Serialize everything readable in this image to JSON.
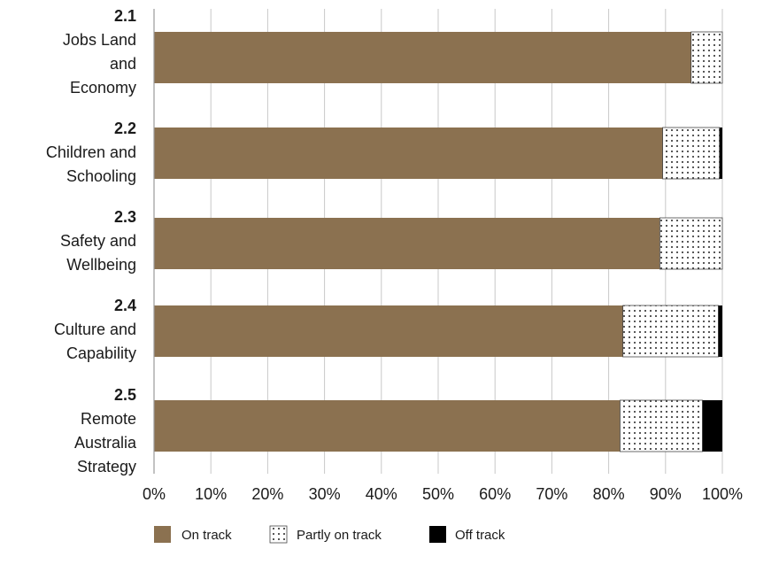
{
  "chart_data": {
    "type": "bar",
    "orientation": "horizontal",
    "stacked": true,
    "categories": [
      {
        "code": "2.1",
        "lines": [
          "Jobs Land",
          "and",
          "Economy"
        ]
      },
      {
        "code": "2.2",
        "lines": [
          "Children and",
          "Schooling"
        ]
      },
      {
        "code": "2.3",
        "lines": [
          "Safety and",
          "Wellbeing"
        ]
      },
      {
        "code": "2.4",
        "lines": [
          "Culture and",
          "Capability"
        ]
      },
      {
        "code": "2.5",
        "lines": [
          "Remote",
          "Australia",
          "Strategy"
        ]
      }
    ],
    "series": [
      {
        "name": "On track",
        "color": "#8b7150",
        "pattern": "solid",
        "values": [
          94.5,
          89.5,
          89.0,
          82.5,
          82.0
        ]
      },
      {
        "name": "Partly on track",
        "color": "#ffffff",
        "pattern": "dots",
        "values": [
          5.5,
          10.0,
          11.0,
          16.8,
          14.5
        ]
      },
      {
        "name": "Off track",
        "color": "#000000",
        "pattern": "solid",
        "values": [
          0.0,
          0.5,
          0.0,
          0.7,
          3.5
        ]
      }
    ],
    "xlim": [
      0,
      100
    ],
    "x_ticks": [
      0,
      10,
      20,
      30,
      40,
      50,
      60,
      70,
      80,
      90,
      100
    ],
    "x_tick_labels": [
      "0%",
      "10%",
      "20%",
      "30%",
      "40%",
      "50%",
      "60%",
      "70%",
      "80%",
      "90%",
      "100%"
    ],
    "grid": "vertical",
    "legend_position": "bottom-left"
  }
}
